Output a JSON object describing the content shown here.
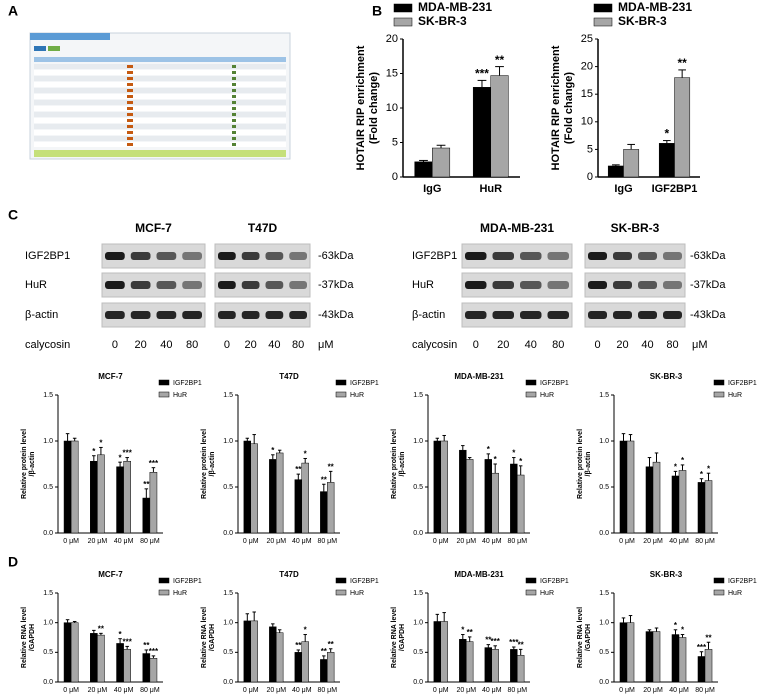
{
  "panel_labels": [
    "A",
    "B",
    "C",
    "D"
  ],
  "blots": [
    {
      "titles": [
        "MCF-7",
        "T47D"
      ],
      "rows": [
        "IGF2BP1",
        "HuR",
        "β-actin"
      ],
      "markers": [
        "-63kDa",
        "-37kDa",
        "-43kDa"
      ],
      "treatment": "calycosin",
      "doses": [
        [
          0,
          20,
          40,
          80
        ],
        [
          0,
          20,
          40,
          80
        ]
      ],
      "unit": "μM"
    },
    {
      "titles": [
        "MDA-MB-231",
        "SK-BR-3"
      ],
      "rows": [
        "IGF2BP1",
        "HuR",
        "β-actin"
      ],
      "markers": [
        "-63kDa",
        "-37kDa",
        "-43kDa"
      ],
      "treatment": "calycosin",
      "doses": [
        [
          0,
          20,
          40,
          80
        ],
        [
          0,
          20,
          40,
          80
        ]
      ],
      "unit": "μM"
    }
  ],
  "chart_data": [
    {
      "type": "bar",
      "ylabel": [
        "HOTAIR RIP enrichment",
        "(Fold change)"
      ],
      "categories": [
        "IgG",
        "HuR"
      ],
      "series": [
        {
          "name": "MDA-MB-231",
          "color": "#000000",
          "values": [
            2.2,
            13
          ],
          "errors": [
            0.2,
            1.0
          ],
          "sig": [
            null,
            "***"
          ]
        },
        {
          "name": "SK-BR-3",
          "color": "#a6a6a6",
          "values": [
            4.2,
            14.7
          ],
          "errors": [
            0.4,
            1.3
          ],
          "sig": [
            null,
            "**"
          ]
        }
      ],
      "ylim": [
        0,
        20
      ],
      "yticks": [
        0,
        5,
        10,
        15,
        20
      ]
    },
    {
      "type": "bar",
      "ylabel": [
        "HOTAIR RIP enrichment",
        "(Fold change)"
      ],
      "categories": [
        "IgG",
        "IGF2BP1"
      ],
      "series": [
        {
          "name": "MDA-MB-231",
          "color": "#000000",
          "values": [
            2.0,
            6.1
          ],
          "errors": [
            0.2,
            0.5
          ],
          "sig": [
            null,
            "*"
          ]
        },
        {
          "name": "SK-BR-3",
          "color": "#a6a6a6",
          "values": [
            5.0,
            18
          ],
          "errors": [
            0.9,
            1.4
          ],
          "sig": [
            null,
            "**"
          ]
        }
      ],
      "ylim": [
        0,
        25
      ],
      "yticks": [
        0,
        5,
        10,
        15,
        20,
        25
      ]
    },
    {
      "type": "bar",
      "title": "MCF-7",
      "ylabel": [
        "Relative protein level",
        "/β-actin"
      ],
      "categories": [
        "0 μM",
        "20 μM",
        "40 μM",
        "80 μM"
      ],
      "series": [
        {
          "name": "IGF2BP1",
          "color": "#000000",
          "values": [
            1.0,
            0.78,
            0.72,
            0.38
          ],
          "errors": [
            0.08,
            0.06,
            0.05,
            0.1
          ],
          "sig": [
            null,
            "*",
            "*",
            "**"
          ]
        },
        {
          "name": "HuR",
          "color": "#a6a6a6",
          "values": [
            1.0,
            0.85,
            0.78,
            0.66
          ],
          "errors": [
            0.03,
            0.08,
            0.04,
            0.05
          ],
          "sig": [
            null,
            "*",
            "***",
            "***"
          ]
        }
      ],
      "ylim": [
        0,
        1.5
      ],
      "yticks": [
        {
          "value": 0,
          "label": "0.0"
        },
        {
          "value": 0.5,
          "label": "0.5"
        },
        {
          "value": 1,
          "label": "1.0"
        },
        {
          "value": 1.5,
          "label": "1.5"
        }
      ]
    },
    {
      "type": "bar",
      "title": "T47D",
      "ylabel": [
        "Relative protein level",
        "/β-actin"
      ],
      "categories": [
        "0 μM",
        "20 μM",
        "40 μM",
        "80 μM"
      ],
      "series": [
        {
          "name": "IGF2BP1",
          "color": "#000000",
          "values": [
            1.0,
            0.8,
            0.58,
            0.45
          ],
          "errors": [
            0.03,
            0.05,
            0.06,
            0.08
          ],
          "sig": [
            null,
            "*",
            "**",
            "**"
          ]
        },
        {
          "name": "HuR",
          "color": "#a6a6a6",
          "values": [
            0.97,
            0.87,
            0.76,
            0.55
          ],
          "errors": [
            0.1,
            0.03,
            0.05,
            0.12
          ],
          "sig": [
            null,
            null,
            "*",
            "**"
          ]
        }
      ],
      "ylim": [
        0,
        1.5
      ],
      "yticks": [
        {
          "value": 0,
          "label": "0.0"
        },
        {
          "value": 0.5,
          "label": "0.5"
        },
        {
          "value": 1,
          "label": "1.0"
        },
        {
          "value": 1.5,
          "label": "1.5"
        }
      ]
    },
    {
      "type": "bar",
      "title": "MDA-MB-231",
      "ylabel": [
        "Relative protein level",
        "/β-actin"
      ],
      "categories": [
        "0 μM",
        "20 μM",
        "40 μM",
        "80 μM"
      ],
      "series": [
        {
          "name": "IGF2BP1",
          "color": "#000000",
          "values": [
            1.0,
            0.9,
            0.8,
            0.75
          ],
          "errors": [
            0.03,
            0.05,
            0.06,
            0.07
          ],
          "sig": [
            null,
            null,
            "*",
            "*"
          ]
        },
        {
          "name": "HuR",
          "color": "#a6a6a6",
          "values": [
            1.0,
            0.8,
            0.65,
            0.63
          ],
          "errors": [
            0.06,
            0.02,
            0.1,
            0.1
          ],
          "sig": [
            null,
            null,
            "*",
            "*"
          ]
        }
      ],
      "ylim": [
        0,
        1.5
      ],
      "yticks": [
        {
          "value": 0,
          "label": "0.0"
        },
        {
          "value": 0.5,
          "label": "0.5"
        },
        {
          "value": 1,
          "label": "1.0"
        },
        {
          "value": 1.5,
          "label": "1.5"
        }
      ]
    },
    {
      "type": "bar",
      "title": "SK-BR-3",
      "ylabel": [
        "Relative protein level",
        "/β-actin"
      ],
      "categories": [
        "0 μM",
        "20 μM",
        "40 μM",
        "80 μM"
      ],
      "series": [
        {
          "name": "IGF2BP1",
          "color": "#000000",
          "values": [
            1.0,
            0.72,
            0.62,
            0.55
          ],
          "errors": [
            0.08,
            0.1,
            0.05,
            0.04
          ],
          "sig": [
            null,
            null,
            "*",
            "*"
          ]
        },
        {
          "name": "HuR",
          "color": "#a6a6a6",
          "values": [
            1.0,
            0.77,
            0.68,
            0.57
          ],
          "errors": [
            0.07,
            0.1,
            0.06,
            0.08
          ],
          "sig": [
            null,
            null,
            "*",
            "*"
          ]
        }
      ],
      "ylim": [
        0,
        1.5
      ],
      "yticks": [
        {
          "value": 0,
          "label": "0.0"
        },
        {
          "value": 0.5,
          "label": "0.5"
        },
        {
          "value": 1,
          "label": "1.0"
        },
        {
          "value": 1.5,
          "label": "1.5"
        }
      ]
    },
    {
      "type": "bar",
      "title": "MCF-7",
      "ylabel": [
        "Relative RNA level",
        "/GAPDH"
      ],
      "categories": [
        "0 μM",
        "20 μM",
        "40 μM",
        "80 μM"
      ],
      "series": [
        {
          "name": "IGF2BP1",
          "color": "#000000",
          "values": [
            1.0,
            0.82,
            0.65,
            0.48
          ],
          "errors": [
            0.05,
            0.05,
            0.08,
            0.06
          ],
          "sig": [
            null,
            null,
            "*",
            "**"
          ]
        },
        {
          "name": "HuR",
          "color": "#a6a6a6",
          "values": [
            1.0,
            0.79,
            0.55,
            0.4
          ],
          "errors": [
            0.02,
            0.03,
            0.05,
            0.04
          ],
          "sig": [
            null,
            "**",
            "***",
            "***"
          ]
        }
      ],
      "ylim": [
        0,
        1.5
      ],
      "yticks": [
        {
          "value": 0,
          "label": "0.0"
        },
        {
          "value": 0.5,
          "label": "0.5"
        },
        {
          "value": 1,
          "label": "1.0"
        },
        {
          "value": 1.5,
          "label": "1.5"
        }
      ]
    },
    {
      "type": "bar",
      "title": "T47D",
      "ylabel": [
        "Relative RNA level",
        "/GAPDH"
      ],
      "categories": [
        "0 μM",
        "20 μM",
        "40 μM",
        "80 μM"
      ],
      "series": [
        {
          "name": "IGF2BP1",
          "color": "#000000",
          "values": [
            1.03,
            0.93,
            0.5,
            0.38
          ],
          "errors": [
            0.12,
            0.05,
            0.04,
            0.06
          ],
          "sig": [
            null,
            null,
            "**",
            "**"
          ]
        },
        {
          "name": "HuR",
          "color": "#a6a6a6",
          "values": [
            1.03,
            0.83,
            0.68,
            0.5
          ],
          "errors": [
            0.15,
            0.05,
            0.12,
            0.06
          ],
          "sig": [
            null,
            null,
            "*",
            "**"
          ]
        }
      ],
      "ylim": [
        0,
        1.5
      ],
      "yticks": [
        {
          "value": 0,
          "label": "0.0"
        },
        {
          "value": 0.5,
          "label": "0.5"
        },
        {
          "value": 1,
          "label": "1.0"
        },
        {
          "value": 1.5,
          "label": "1.5"
        }
      ]
    },
    {
      "type": "bar",
      "title": "MDA-MB-231",
      "ylabel": [
        "Relative RNA level",
        "/GAPDH"
      ],
      "categories": [
        "0 μM",
        "20 μM",
        "40 μM",
        "80 μM"
      ],
      "series": [
        {
          "name": "IGF2BP1",
          "color": "#000000",
          "values": [
            1.02,
            0.72,
            0.58,
            0.55
          ],
          "errors": [
            0.12,
            0.08,
            0.05,
            0.04
          ],
          "sig": [
            null,
            "*",
            "**",
            "***"
          ]
        },
        {
          "name": "HuR",
          "color": "#a6a6a6",
          "values": [
            1.02,
            0.68,
            0.55,
            0.45
          ],
          "errors": [
            0.15,
            0.08,
            0.06,
            0.1
          ],
          "sig": [
            null,
            "**",
            "***",
            "**"
          ]
        }
      ],
      "ylim": [
        0,
        1.5
      ],
      "yticks": [
        {
          "value": 0,
          "label": "0.0"
        },
        {
          "value": 0.5,
          "label": "0.5"
        },
        {
          "value": 1,
          "label": "1.0"
        },
        {
          "value": 1.5,
          "label": "1.5"
        }
      ]
    },
    {
      "type": "bar",
      "title": "SK-BR-3",
      "ylabel": [
        "Relative RNA level",
        "/GAPDH"
      ],
      "categories": [
        "0 μM",
        "20 μM",
        "40 μM",
        "80 μM"
      ],
      "series": [
        {
          "name": "IGF2BP1",
          "color": "#000000",
          "values": [
            1.0,
            0.85,
            0.8,
            0.43
          ],
          "errors": [
            0.08,
            0.03,
            0.08,
            0.08
          ],
          "sig": [
            null,
            null,
            "*",
            "***"
          ]
        },
        {
          "name": "HuR",
          "color": "#a6a6a6",
          "values": [
            1.0,
            0.85,
            0.75,
            0.55
          ],
          "errors": [
            0.12,
            0.06,
            0.05,
            0.12
          ],
          "sig": [
            null,
            null,
            "*",
            "**"
          ]
        }
      ],
      "ylim": [
        0,
        1.5
      ],
      "yticks": [
        {
          "value": 0,
          "label": "0.0"
        },
        {
          "value": 0.5,
          "label": "0.5"
        },
        {
          "value": 1,
          "label": "1.0"
        },
        {
          "value": 1.5,
          "label": "1.5"
        }
      ]
    }
  ]
}
